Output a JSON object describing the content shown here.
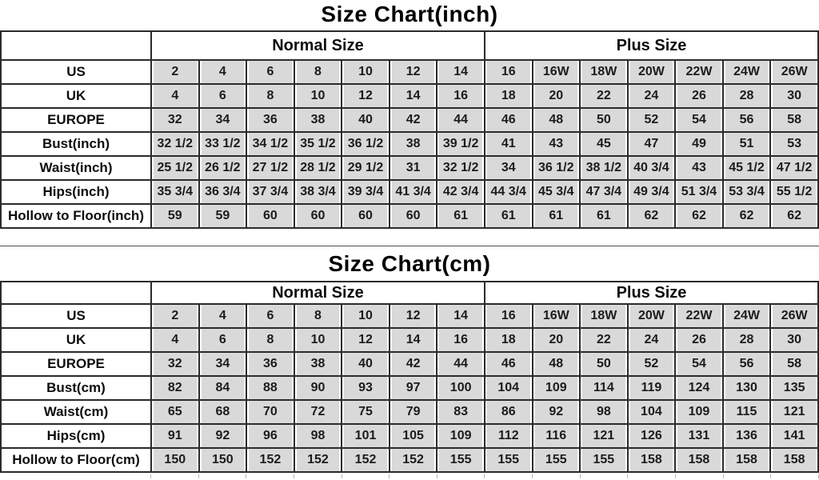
{
  "colors": {
    "background": "#ffffff",
    "cell_fill": "#d9d9d9",
    "grid": "#2b2b2b",
    "text": "#111111"
  },
  "chart_data": [
    {
      "type": "table",
      "title": "Size Chart(inch)",
      "corner_label": "",
      "column_groups": [
        {
          "label": "Normal Size",
          "span": 7
        },
        {
          "label": "Plus Size",
          "span": 7
        }
      ],
      "rows": [
        {
          "label": "US",
          "values": [
            "2",
            "4",
            "6",
            "8",
            "10",
            "12",
            "14",
            "16",
            "16W",
            "18W",
            "20W",
            "22W",
            "24W",
            "26W"
          ]
        },
        {
          "label": "UK",
          "values": [
            "4",
            "6",
            "8",
            "10",
            "12",
            "14",
            "16",
            "18",
            "20",
            "22",
            "24",
            "26",
            "28",
            "30"
          ]
        },
        {
          "label": "EUROPE",
          "values": [
            "32",
            "34",
            "36",
            "38",
            "40",
            "42",
            "44",
            "46",
            "48",
            "50",
            "52",
            "54",
            "56",
            "58"
          ]
        },
        {
          "label": "Bust(inch)",
          "values": [
            "32 1/2",
            "33 1/2",
            "34 1/2",
            "35 1/2",
            "36 1/2",
            "38",
            "39 1/2",
            "41",
            "43",
            "45",
            "47",
            "49",
            "51",
            "53"
          ]
        },
        {
          "label": "Waist(inch)",
          "values": [
            "25 1/2",
            "26 1/2",
            "27 1/2",
            "28 1/2",
            "29 1/2",
            "31",
            "32 1/2",
            "34",
            "36 1/2",
            "38 1/2",
            "40 3/4",
            "43",
            "45 1/2",
            "47 1/2"
          ]
        },
        {
          "label": "Hips(inch)",
          "values": [
            "35 3/4",
            "36 3/4",
            "37 3/4",
            "38 3/4",
            "39 3/4",
            "41 3/4",
            "42 3/4",
            "44 3/4",
            "45 3/4",
            "47 3/4",
            "49 3/4",
            "51 3/4",
            "53 3/4",
            "55 1/2"
          ]
        },
        {
          "label": "Hollow to Floor(inch)",
          "values": [
            "59",
            "59",
            "60",
            "60",
            "60",
            "60",
            "61",
            "61",
            "61",
            "61",
            "62",
            "62",
            "62",
            "62"
          ]
        }
      ]
    },
    {
      "type": "table",
      "title": "Size Chart(cm)",
      "corner_label": "",
      "column_groups": [
        {
          "label": "Normal Size",
          "span": 7
        },
        {
          "label": "Plus Size",
          "span": 7
        }
      ],
      "rows": [
        {
          "label": "US",
          "values": [
            "2",
            "4",
            "6",
            "8",
            "10",
            "12",
            "14",
            "16",
            "16W",
            "18W",
            "20W",
            "22W",
            "24W",
            "26W"
          ]
        },
        {
          "label": "UK",
          "values": [
            "4",
            "6",
            "8",
            "10",
            "12",
            "14",
            "16",
            "18",
            "20",
            "22",
            "24",
            "26",
            "28",
            "30"
          ]
        },
        {
          "label": "EUROPE",
          "values": [
            "32",
            "34",
            "36",
            "38",
            "40",
            "42",
            "44",
            "46",
            "48",
            "50",
            "52",
            "54",
            "56",
            "58"
          ]
        },
        {
          "label": "Bust(cm)",
          "values": [
            "82",
            "84",
            "88",
            "90",
            "93",
            "97",
            "100",
            "104",
            "109",
            "114",
            "119",
            "124",
            "130",
            "135"
          ]
        },
        {
          "label": "Waist(cm)",
          "values": [
            "65",
            "68",
            "70",
            "72",
            "75",
            "79",
            "83",
            "86",
            "92",
            "98",
            "104",
            "109",
            "115",
            "121"
          ]
        },
        {
          "label": "Hips(cm)",
          "values": [
            "91",
            "92",
            "96",
            "98",
            "101",
            "105",
            "109",
            "112",
            "116",
            "121",
            "126",
            "131",
            "136",
            "141"
          ]
        },
        {
          "label": "Hollow to Floor(cm)",
          "values": [
            "150",
            "150",
            "152",
            "152",
            "152",
            "152",
            "155",
            "155",
            "155",
            "155",
            "158",
            "158",
            "158",
            "158"
          ]
        }
      ]
    }
  ]
}
